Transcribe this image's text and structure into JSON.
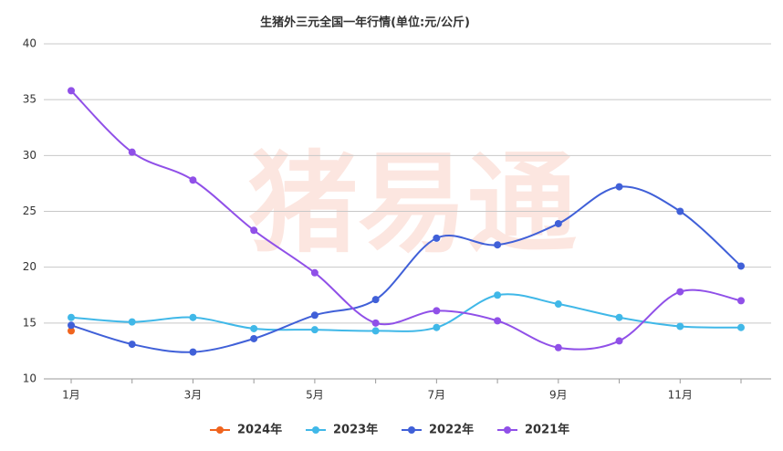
{
  "chart_data": {
    "type": "line",
    "title": "生猪外三元全国一年行情(单位:元/公斤)",
    "watermark": "猪易通",
    "categories": [
      "1月",
      null,
      "3月",
      null,
      "5月",
      null,
      "7月",
      null,
      "9月",
      null,
      "11月",
      null
    ],
    "series": [
      {
        "name": "2024年",
        "color": "#f0641e",
        "values": [
          14.3,
          null,
          null,
          null,
          null,
          null,
          null,
          null,
          null,
          null,
          null,
          null
        ]
      },
      {
        "name": "2023年",
        "color": "#40b8e8",
        "values": [
          15.5,
          15.1,
          15.5,
          14.5,
          14.4,
          14.3,
          14.6,
          17.5,
          16.7,
          15.5,
          14.7,
          14.6
        ]
      },
      {
        "name": "2022年",
        "color": "#4060d8",
        "values": [
          14.8,
          13.1,
          12.4,
          13.6,
          15.7,
          17.1,
          22.6,
          22.0,
          23.9,
          27.2,
          25.0,
          20.1
        ]
      },
      {
        "name": "2021年",
        "color": "#9050e8",
        "values": [
          35.8,
          30.3,
          27.8,
          23.3,
          19.5,
          15.0,
          16.1,
          15.2,
          12.8,
          13.4,
          17.8,
          17.0
        ]
      }
    ],
    "ylim": [
      10,
      40
    ],
    "yticks": [
      10,
      15,
      20,
      25,
      30,
      35,
      40
    ],
    "grid": true,
    "legend": "bottom"
  }
}
